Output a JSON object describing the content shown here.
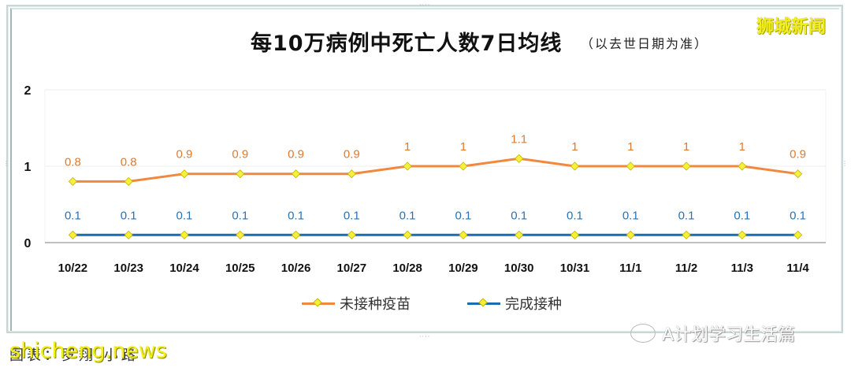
{
  "header": {
    "title": "每10万病例中死亡人数7日均线",
    "subtitle": "（以去世日期为准）",
    "brand": "狮城新闻"
  },
  "legend": {
    "items": [
      {
        "label": "未接种疫苗",
        "color": "#f0883e"
      },
      {
        "label": "完成接种",
        "color": "#1a6db5"
      }
    ]
  },
  "footer": {
    "caption": "图表：罗翔 小路",
    "watermark": "shicheng.news",
    "wechat_watermark": "A计划学习生活篇"
  },
  "colors": {
    "unvaccinated": "#f0883e",
    "vaccinated": "#1a6db5",
    "marker_fill": "#f5f03a",
    "label_unvaccinated": "#e07a2e",
    "label_vaccinated": "#2a72b5",
    "grid": "#eeeeee",
    "axis": "#999999"
  },
  "chart_data": {
    "type": "line",
    "title": "每10万病例中死亡人数7日均线（以去世日期为准）",
    "xlabel": "",
    "ylabel": "",
    "categories": [
      "10/22",
      "10/23",
      "10/24",
      "10/25",
      "10/26",
      "10/27",
      "10/28",
      "10/29",
      "10/30",
      "10/31",
      "11/1",
      "11/2",
      "11/3",
      "11/4"
    ],
    "series": [
      {
        "name": "未接种疫苗",
        "values": [
          0.8,
          0.8,
          0.9,
          0.9,
          0.9,
          0.9,
          1,
          1,
          1.1,
          1,
          1,
          1,
          1,
          0.9
        ]
      },
      {
        "name": "完成接种",
        "values": [
          0.1,
          0.1,
          0.1,
          0.1,
          0.1,
          0.1,
          0.1,
          0.1,
          0.1,
          0.1,
          0.1,
          0.1,
          0.1,
          0.1
        ]
      }
    ],
    "yticks": [
      0,
      1,
      2
    ],
    "ylim": [
      0,
      2
    ],
    "grid": true,
    "data_labels": true,
    "legend_position": "bottom"
  }
}
